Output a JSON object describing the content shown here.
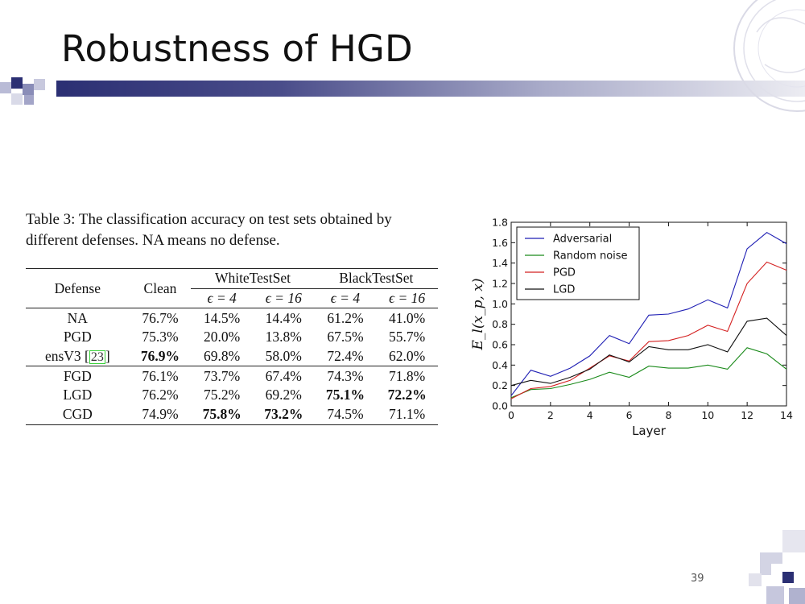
{
  "slide": {
    "title": "Robustness of HGD",
    "page_number": "39"
  },
  "table": {
    "caption": "Table 3: The classification accuracy on test sets obtained by different defenses. NA means no defense.",
    "headers": {
      "defense": "Defense",
      "clean": "Clean",
      "white": "WhiteTestSet",
      "black": "BlackTestSet",
      "eps4": "ϵ = 4",
      "eps16": "ϵ = 16"
    },
    "rows": [
      {
        "defense": "NA",
        "cite": "",
        "clean": "76.7%",
        "w4": "14.5%",
        "w16": "14.4%",
        "b4": "61.2%",
        "b16": "41.0%"
      },
      {
        "defense": "PGD",
        "cite": "",
        "clean": "75.3%",
        "w4": "20.0%",
        "w16": "13.8%",
        "b4": "67.5%",
        "b16": "55.7%"
      },
      {
        "defense": "ensV3 [",
        "cite": "23",
        "cite_close": "]",
        "clean": "76.9%",
        "w4": "69.8%",
        "w16": "58.0%",
        "b4": "72.4%",
        "b16": "62.0%"
      },
      {
        "defense": "FGD",
        "cite": "",
        "clean": "76.1%",
        "w4": "73.7%",
        "w16": "67.4%",
        "b4": "74.3%",
        "b16": "71.8%"
      },
      {
        "defense": "LGD",
        "cite": "",
        "clean": "76.2%",
        "w4": "75.2%",
        "w16": "69.2%",
        "b4": "75.1%",
        "b16": "72.2%"
      },
      {
        "defense": "CGD",
        "cite": "",
        "clean": "74.9%",
        "w4": "75.8%",
        "w16": "73.2%",
        "b4": "74.5%",
        "b16": "71.1%"
      }
    ]
  },
  "chart_data": {
    "type": "line",
    "title": "",
    "xlabel": "Layer",
    "ylabel": "E_l(x_p, x)",
    "xlim": [
      0,
      14
    ],
    "ylim": [
      0.0,
      1.8
    ],
    "x_ticks": [
      "0",
      "2",
      "4",
      "6",
      "8",
      "10",
      "12",
      "14"
    ],
    "y_ticks": [
      "0.0",
      "0.2",
      "0.4",
      "0.6",
      "0.8",
      "1.0",
      "1.2",
      "1.4",
      "1.6",
      "1.8"
    ],
    "grid": false,
    "legend_position": "top-left",
    "x": [
      0,
      1,
      2,
      3,
      4,
      5,
      6,
      7,
      8,
      9,
      10,
      11,
      12,
      13,
      14
    ],
    "series": [
      {
        "name": "Adversarial",
        "color": "#1f1fb4",
        "values": [
          0.1,
          0.35,
          0.29,
          0.37,
          0.49,
          0.69,
          0.61,
          0.89,
          0.9,
          0.95,
          1.04,
          0.96,
          1.54,
          1.7,
          1.59
        ]
      },
      {
        "name": "Random noise",
        "color": "#1a8a1a",
        "values": [
          0.08,
          0.16,
          0.17,
          0.21,
          0.26,
          0.33,
          0.28,
          0.39,
          0.37,
          0.37,
          0.4,
          0.36,
          0.57,
          0.51,
          0.36
        ]
      },
      {
        "name": "PGD",
        "color": "#d42020",
        "values": [
          0.07,
          0.17,
          0.19,
          0.25,
          0.37,
          0.49,
          0.44,
          0.63,
          0.64,
          0.69,
          0.79,
          0.73,
          1.2,
          1.41,
          1.33
        ]
      },
      {
        "name": "LGD",
        "color": "#111111",
        "values": [
          0.2,
          0.25,
          0.22,
          0.28,
          0.36,
          0.5,
          0.43,
          0.58,
          0.55,
          0.55,
          0.6,
          0.53,
          0.83,
          0.86,
          0.69
        ]
      }
    ]
  }
}
